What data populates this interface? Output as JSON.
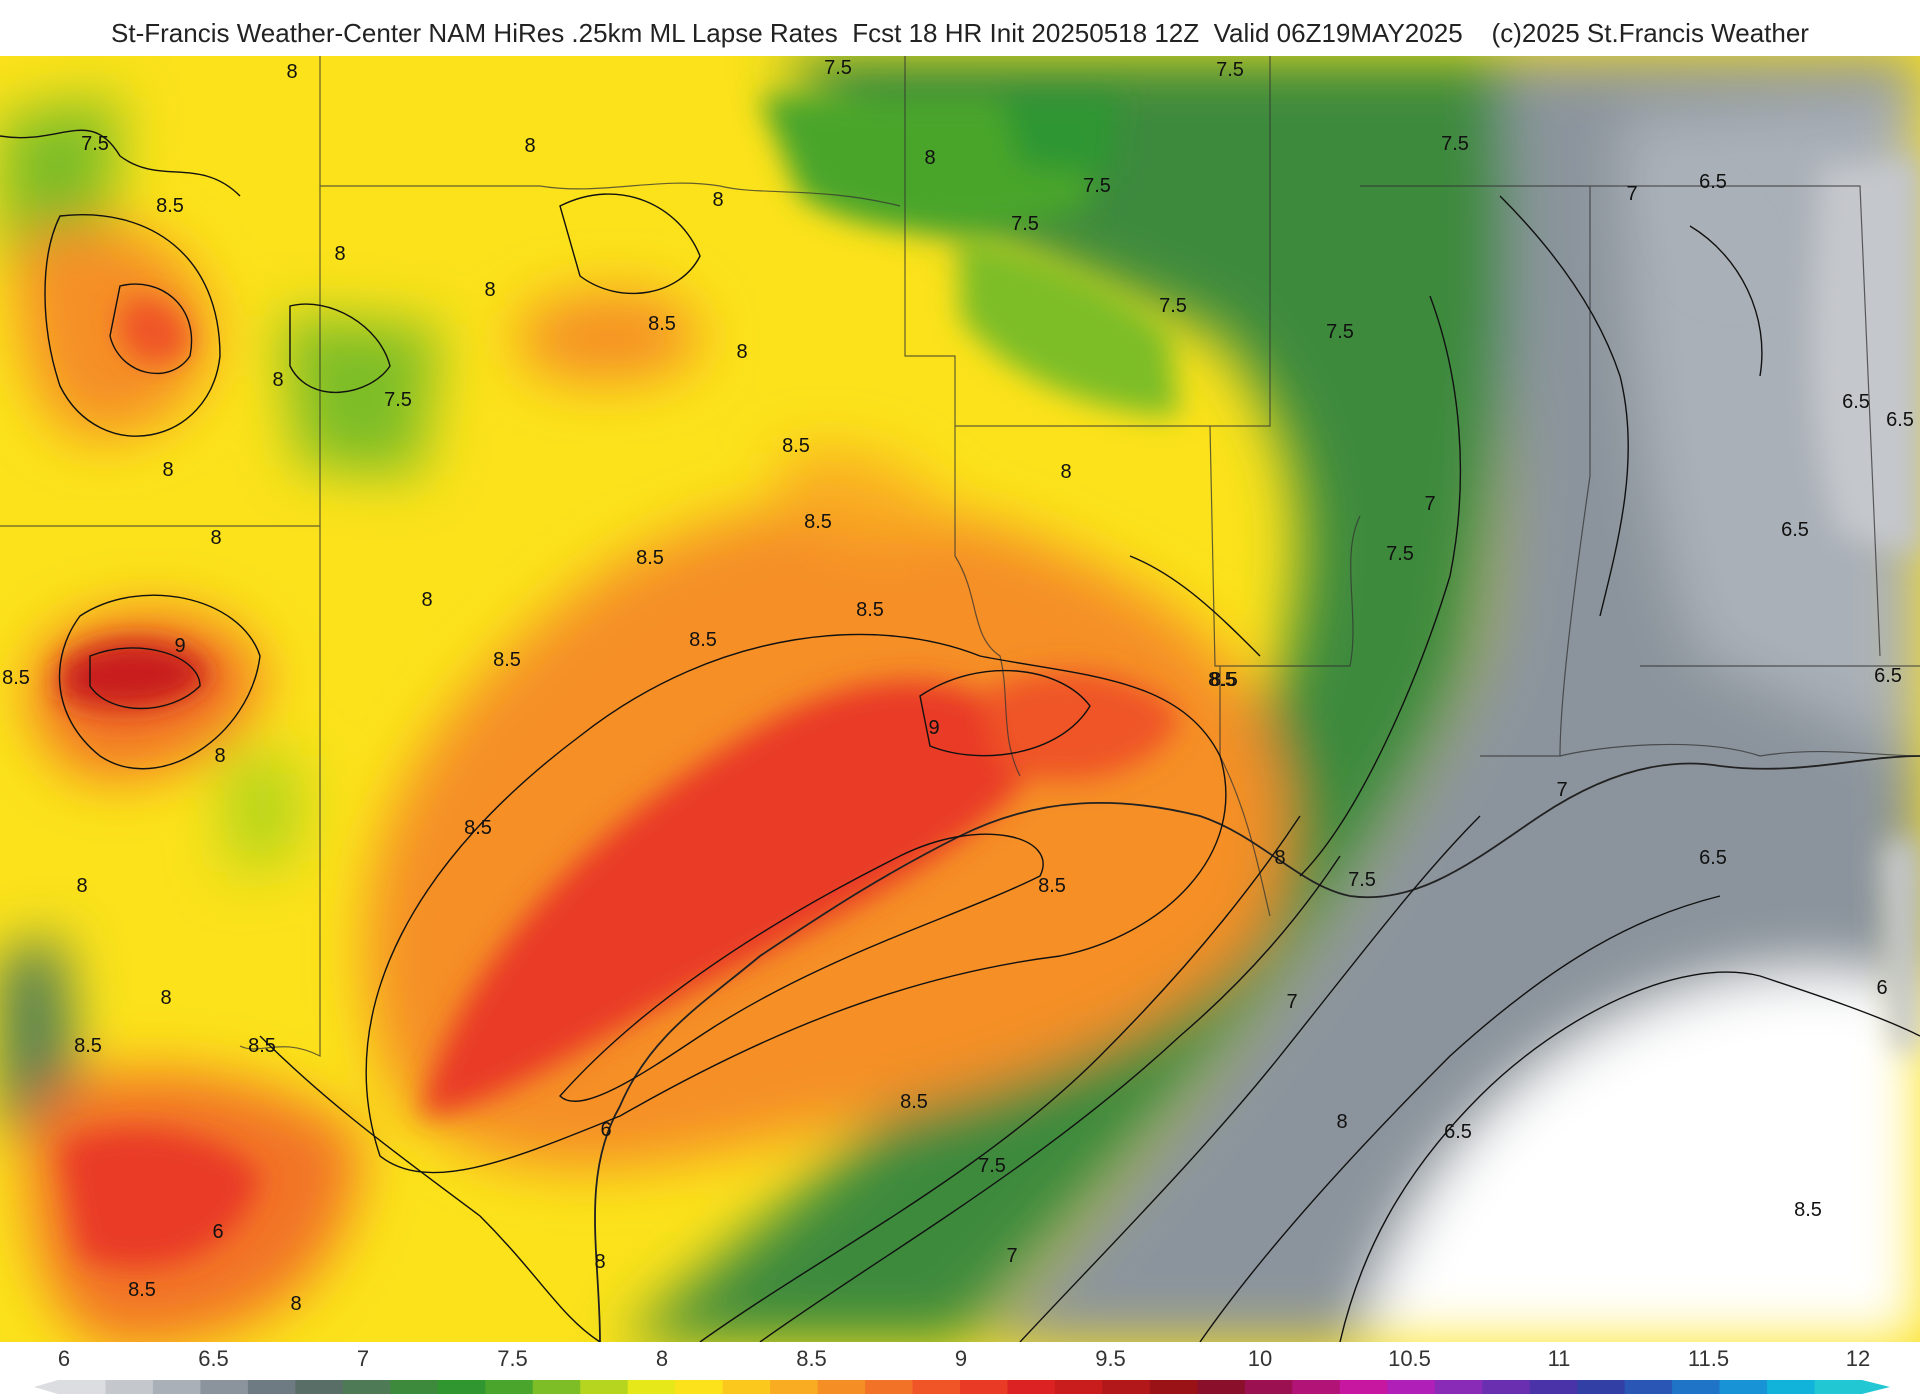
{
  "header": {
    "title": "St-Francis Weather-Center NAM HiRes .25km ML Lapse Rates  Fcst 18 HR Init 20250518 12Z  Valid 06Z19MAY2025    (c)2025 St.Francis Weather"
  },
  "map": {
    "contour_labels": [
      {
        "id": "l1",
        "text": "8"
      },
      {
        "id": "l2",
        "text": "7.5"
      },
      {
        "id": "l3",
        "text": "8.5"
      },
      {
        "id": "l4",
        "text": "8"
      },
      {
        "id": "l5",
        "text": "7.5"
      },
      {
        "id": "l6",
        "text": "8"
      },
      {
        "id": "l7",
        "text": "8"
      },
      {
        "id": "l8",
        "text": "8"
      },
      {
        "id": "l9",
        "text": "7.5"
      },
      {
        "id": "l10",
        "text": "7.5"
      },
      {
        "id": "l11",
        "text": "7.5"
      },
      {
        "id": "l12",
        "text": "7.5"
      },
      {
        "id": "l13",
        "text": "7.5"
      },
      {
        "id": "l14",
        "text": "7"
      },
      {
        "id": "l15",
        "text": "6.5"
      },
      {
        "id": "l16",
        "text": "8"
      },
      {
        "id": "l17",
        "text": "8"
      },
      {
        "id": "l18",
        "text": "8.5"
      },
      {
        "id": "l19",
        "text": "8"
      },
      {
        "id": "l20",
        "text": "7.5"
      },
      {
        "id": "l21",
        "text": "8"
      },
      {
        "id": "l22",
        "text": "7.5"
      },
      {
        "id": "l23",
        "text": "8"
      },
      {
        "id": "l24",
        "text": "8.5"
      },
      {
        "id": "l25",
        "text": "8"
      },
      {
        "id": "l26",
        "text": "8.5"
      },
      {
        "id": "l27",
        "text": "8.5"
      },
      {
        "id": "l28",
        "text": "8"
      },
      {
        "id": "l29",
        "text": "8.5"
      },
      {
        "id": "l30",
        "text": "7"
      },
      {
        "id": "l31",
        "text": "6.5"
      },
      {
        "id": "l32",
        "text": "6.5"
      },
      {
        "id": "l33",
        "text": "7.5"
      },
      {
        "id": "l34",
        "text": "6.5"
      },
      {
        "id": "l35",
        "text": "9"
      },
      {
        "id": "l36",
        "text": "8.5"
      },
      {
        "id": "l37",
        "text": "8.5"
      },
      {
        "id": "l38",
        "text": "8.5"
      },
      {
        "id": "l39",
        "text": "8.5"
      },
      {
        "id": "l40",
        "text": "8.5"
      },
      {
        "id": "l41",
        "text": "6.5"
      },
      {
        "id": "l42",
        "text": "8"
      },
      {
        "id": "l43",
        "text": "9"
      },
      {
        "id": "l44",
        "text": "8"
      },
      {
        "id": "l45",
        "text": "7"
      },
      {
        "id": "l46",
        "text": "8.5"
      },
      {
        "id": "l47",
        "text": "8.5"
      },
      {
        "id": "l48",
        "text": "8"
      },
      {
        "id": "l49",
        "text": "7.5"
      },
      {
        "id": "l50",
        "text": "6.5"
      },
      {
        "id": "l51",
        "text": "8"
      },
      {
        "id": "l52",
        "text": "6"
      },
      {
        "id": "l53",
        "text": "8.5"
      },
      {
        "id": "l54",
        "text": "8.5"
      },
      {
        "id": "l55",
        "text": "7"
      },
      {
        "id": "l56",
        "text": "8.5"
      },
      {
        "id": "l57",
        "text": "8"
      },
      {
        "id": "l58",
        "text": "6.5"
      },
      {
        "id": "l59",
        "text": "6"
      },
      {
        "id": "l60",
        "text": "7.5"
      },
      {
        "id": "l61",
        "text": "8.5"
      },
      {
        "id": "l62",
        "text": "6"
      },
      {
        "id": "l63",
        "text": "7"
      },
      {
        "id": "l64",
        "text": "8"
      },
      {
        "id": "l65",
        "text": "8.5"
      },
      {
        "id": "l66",
        "text": "8"
      }
    ]
  },
  "legend": {
    "ticks": [
      "6",
      "6.5",
      "7",
      "7.5",
      "8",
      "8.5",
      "9",
      "9.5",
      "10",
      "10.5",
      "11",
      "11.5",
      "12"
    ],
    "colors": [
      "#dcdde0",
      "#c4c7cc",
      "#aab0b7",
      "#8b949c",
      "#6f7b82",
      "#5a6e68",
      "#4e7a55",
      "#3e8a3c",
      "#2f9630",
      "#4aa52c",
      "#7dbd26",
      "#b5d51f",
      "#e6e81a",
      "#fbe21b",
      "#fbc91d",
      "#f9ac22",
      "#f58f25",
      "#f27327",
      "#ef5526",
      "#e93a25",
      "#dc2222",
      "#c81c1d",
      "#b2171a",
      "#9a1216",
      "#8a0f2a",
      "#9b1050",
      "#b21377",
      "#c716a0",
      "#b020b8",
      "#8a2bb7",
      "#6a2fb0",
      "#4a33a8",
      "#3240a6",
      "#2a57b5",
      "#1f74c8",
      "#1894d6",
      "#12b3da",
      "#22c7d4"
    ]
  }
}
